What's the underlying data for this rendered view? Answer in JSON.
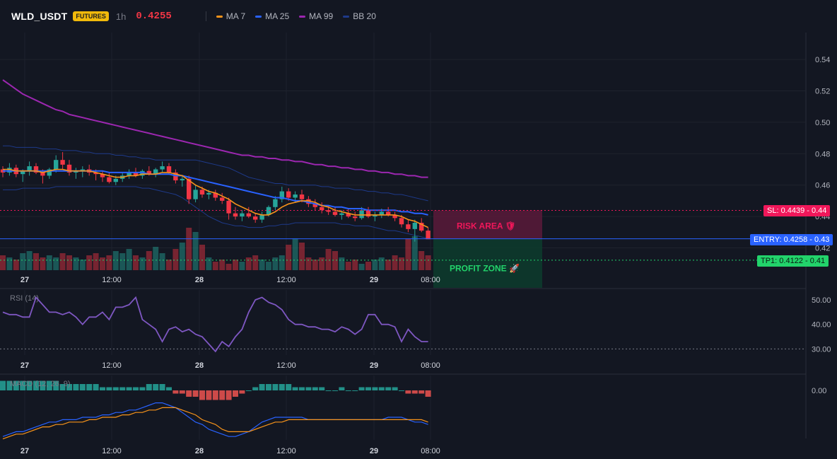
{
  "header": {
    "symbol": "WLD_USDT",
    "badge": "FUTURES",
    "timeframe": "1h",
    "last_price": "0.4255",
    "legend": [
      {
        "label": "MA 7",
        "color": "#f7931a"
      },
      {
        "label": "MA 25",
        "color": "#2962ff"
      },
      {
        "label": "MA 99",
        "color": "#9c27b0"
      },
      {
        "label": "BB 20",
        "color": "#1e3a8a"
      }
    ]
  },
  "colors": {
    "background": "#131722",
    "up": "#26a69a",
    "down": "#f23645",
    "grid": "#1e222d",
    "risk_zone": "#5a1a3a",
    "profit_zone": "#0d3a2c"
  },
  "chart_data": [
    {
      "type": "candlestick",
      "title": "WLD_USDT",
      "y_ticks": [
        "0.54",
        "0.52",
        "0.50",
        "0.48",
        "0.46",
        "0.44",
        "0.42"
      ],
      "x_ticks": [
        "27",
        "12:00",
        "28",
        "12:00",
        "29",
        "08:00"
      ],
      "candles": [
        [
          0.47,
          0.472,
          0.465,
          0.468
        ],
        [
          0.468,
          0.474,
          0.466,
          0.471
        ],
        [
          0.471,
          0.473,
          0.465,
          0.467
        ],
        [
          0.467,
          0.47,
          0.462,
          0.469
        ],
        [
          0.469,
          0.475,
          0.466,
          0.472
        ],
        [
          0.472,
          0.474,
          0.467,
          0.468
        ],
        [
          0.468,
          0.47,
          0.461,
          0.466
        ],
        [
          0.466,
          0.471,
          0.464,
          0.47
        ],
        [
          0.47,
          0.479,
          0.468,
          0.476
        ],
        [
          0.476,
          0.481,
          0.47,
          0.473
        ],
        [
          0.473,
          0.476,
          0.466,
          0.468
        ],
        [
          0.468,
          0.471,
          0.464,
          0.469
        ],
        [
          0.469,
          0.472,
          0.465,
          0.47
        ],
        [
          0.47,
          0.473,
          0.466,
          0.468
        ],
        [
          0.468,
          0.47,
          0.463,
          0.467
        ],
        [
          0.467,
          0.469,
          0.462,
          0.465
        ],
        [
          0.465,
          0.468,
          0.461,
          0.462
        ],
        [
          0.462,
          0.466,
          0.46,
          0.464
        ],
        [
          0.464,
          0.468,
          0.462,
          0.466
        ],
        [
          0.466,
          0.47,
          0.464,
          0.468
        ],
        [
          0.468,
          0.471,
          0.465,
          0.466
        ],
        [
          0.466,
          0.47,
          0.464,
          0.469
        ],
        [
          0.469,
          0.472,
          0.466,
          0.467
        ],
        [
          0.467,
          0.471,
          0.465,
          0.47
        ],
        [
          0.47,
          0.475,
          0.468,
          0.472
        ],
        [
          0.472,
          0.474,
          0.467,
          0.468
        ],
        [
          0.468,
          0.47,
          0.461,
          0.463
        ],
        [
          0.463,
          0.466,
          0.459,
          0.464
        ],
        [
          0.464,
          0.466,
          0.448,
          0.451
        ],
        [
          0.451,
          0.46,
          0.449,
          0.457
        ],
        [
          0.457,
          0.459,
          0.452,
          0.454
        ],
        [
          0.454,
          0.457,
          0.451,
          0.455
        ],
        [
          0.455,
          0.457,
          0.45,
          0.452
        ],
        [
          0.452,
          0.455,
          0.448,
          0.45
        ],
        [
          0.45,
          0.452,
          0.438,
          0.442
        ],
        [
          0.442,
          0.446,
          0.438,
          0.44
        ],
        [
          0.44,
          0.444,
          0.437,
          0.442
        ],
        [
          0.442,
          0.446,
          0.439,
          0.44
        ],
        [
          0.44,
          0.442,
          0.436,
          0.438
        ],
        [
          0.438,
          0.443,
          0.436,
          0.441
        ],
        [
          0.441,
          0.447,
          0.44,
          0.446
        ],
        [
          0.446,
          0.453,
          0.444,
          0.451
        ],
        [
          0.451,
          0.459,
          0.449,
          0.456
        ],
        [
          0.456,
          0.458,
          0.45,
          0.452
        ],
        [
          0.452,
          0.456,
          0.449,
          0.454
        ],
        [
          0.454,
          0.457,
          0.449,
          0.451
        ],
        [
          0.451,
          0.453,
          0.446,
          0.448
        ],
        [
          0.448,
          0.451,
          0.444,
          0.446
        ],
        [
          0.446,
          0.449,
          0.442,
          0.444
        ],
        [
          0.444,
          0.447,
          0.441,
          0.443
        ],
        [
          0.443,
          0.446,
          0.44,
          0.441
        ],
        [
          0.441,
          0.444,
          0.438,
          0.442
        ],
        [
          0.442,
          0.445,
          0.439,
          0.44
        ],
        [
          0.44,
          0.443,
          0.437,
          0.439
        ],
        [
          0.439,
          0.446,
          0.438,
          0.444
        ],
        [
          0.444,
          0.446,
          0.439,
          0.44
        ],
        [
          0.44,
          0.443,
          0.437,
          0.441
        ],
        [
          0.441,
          0.445,
          0.439,
          0.443
        ],
        [
          0.443,
          0.446,
          0.44,
          0.441
        ],
        [
          0.441,
          0.443,
          0.437,
          0.439
        ],
        [
          0.439,
          0.441,
          0.433,
          0.435
        ],
        [
          0.435,
          0.438,
          0.43,
          0.432
        ],
        [
          0.432,
          0.438,
          0.424,
          0.436
        ],
        [
          0.436,
          0.439,
          0.43,
          0.431
        ],
        [
          0.431,
          0.433,
          0.426,
          0.4255
        ]
      ],
      "volumes": [
        7,
        6,
        5,
        8,
        9,
        8,
        6,
        7,
        6,
        8,
        7,
        6,
        5,
        7,
        8,
        6,
        7,
        9,
        8,
        10,
        7,
        6,
        9,
        11,
        8,
        5,
        10,
        13,
        20,
        18,
        12,
        6,
        4,
        5,
        3,
        5,
        4,
        6,
        7,
        5,
        4,
        6,
        7,
        12,
        15,
        13,
        6,
        5,
        6,
        10,
        9,
        6,
        4,
        5,
        3,
        4,
        5,
        6,
        5,
        7,
        6,
        15,
        16,
        9,
        7
      ],
      "ma7": [
        0.47,
        0.47,
        0.469,
        0.469,
        0.469,
        0.469,
        0.468,
        0.469,
        0.47,
        0.47,
        0.469,
        0.469,
        0.469,
        0.469,
        0.468,
        0.467,
        0.466,
        0.465,
        0.465,
        0.466,
        0.466,
        0.467,
        0.467,
        0.467,
        0.468,
        0.468,
        0.467,
        0.466,
        0.463,
        0.46,
        0.458,
        0.456,
        0.455,
        0.453,
        0.451,
        0.448,
        0.446,
        0.444,
        0.442,
        0.441,
        0.441,
        0.443,
        0.446,
        0.448,
        0.449,
        0.45,
        0.45,
        0.449,
        0.447,
        0.446,
        0.444,
        0.443,
        0.442,
        0.441,
        0.441,
        0.441,
        0.441,
        0.441,
        0.441,
        0.441,
        0.44,
        0.438,
        0.437,
        0.435,
        0.433
      ],
      "ma25": [
        0.469,
        0.469,
        0.469,
        0.469,
        0.469,
        0.469,
        0.469,
        0.469,
        0.469,
        0.469,
        0.469,
        0.469,
        0.469,
        0.469,
        0.469,
        0.469,
        0.468,
        0.468,
        0.468,
        0.468,
        0.468,
        0.468,
        0.467,
        0.467,
        0.467,
        0.467,
        0.466,
        0.466,
        0.465,
        0.464,
        0.463,
        0.462,
        0.461,
        0.46,
        0.459,
        0.458,
        0.457,
        0.456,
        0.455,
        0.454,
        0.453,
        0.452,
        0.452,
        0.451,
        0.45,
        0.45,
        0.449,
        0.448,
        0.447,
        0.447,
        0.446,
        0.446,
        0.445,
        0.445,
        0.445,
        0.444,
        0.444,
        0.444,
        0.444,
        0.444,
        0.443,
        0.443,
        0.442,
        0.442,
        0.441
      ],
      "ma99": [
        0.527,
        0.524,
        0.521,
        0.518,
        0.516,
        0.514,
        0.512,
        0.51,
        0.508,
        0.507,
        0.505,
        0.504,
        0.503,
        0.502,
        0.501,
        0.5,
        0.499,
        0.498,
        0.497,
        0.496,
        0.495,
        0.494,
        0.493,
        0.492,
        0.491,
        0.49,
        0.489,
        0.488,
        0.487,
        0.486,
        0.485,
        0.484,
        0.483,
        0.482,
        0.481,
        0.48,
        0.479,
        0.479,
        0.478,
        0.478,
        0.477,
        0.477,
        0.476,
        0.476,
        0.475,
        0.475,
        0.474,
        0.473,
        0.473,
        0.472,
        0.472,
        0.471,
        0.471,
        0.47,
        0.47,
        0.469,
        0.469,
        0.468,
        0.468,
        0.467,
        0.467,
        0.466,
        0.466,
        0.465,
        0.465
      ],
      "bb_upper": [
        0.485,
        0.485,
        0.484,
        0.484,
        0.484,
        0.484,
        0.483,
        0.483,
        0.483,
        0.482,
        0.482,
        0.482,
        0.481,
        0.481,
        0.48,
        0.48,
        0.48,
        0.479,
        0.479,
        0.478,
        0.478,
        0.477,
        0.477,
        0.476,
        0.476,
        0.476,
        0.476,
        0.476,
        0.476,
        0.476,
        0.475,
        0.474,
        0.473,
        0.472,
        0.471,
        0.469,
        0.467,
        0.465,
        0.464,
        0.463,
        0.462,
        0.461,
        0.461,
        0.46,
        0.46,
        0.46,
        0.46,
        0.46,
        0.459,
        0.459,
        0.458,
        0.458,
        0.458,
        0.457,
        0.457,
        0.456,
        0.456,
        0.455,
        0.455,
        0.454,
        0.454,
        0.453,
        0.452,
        0.451,
        0.45
      ],
      "bb_lower": [
        0.457,
        0.457,
        0.457,
        0.458,
        0.458,
        0.458,
        0.458,
        0.458,
        0.459,
        0.459,
        0.459,
        0.459,
        0.459,
        0.459,
        0.459,
        0.459,
        0.459,
        0.459,
        0.459,
        0.459,
        0.459,
        0.458,
        0.458,
        0.457,
        0.456,
        0.455,
        0.454,
        0.452,
        0.449,
        0.446,
        0.443,
        0.44,
        0.438,
        0.436,
        0.435,
        0.434,
        0.434,
        0.433,
        0.433,
        0.433,
        0.434,
        0.434,
        0.435,
        0.435,
        0.436,
        0.436,
        0.436,
        0.436,
        0.436,
        0.436,
        0.436,
        0.435,
        0.435,
        0.434,
        0.434,
        0.434,
        0.433,
        0.432,
        0.431,
        0.431,
        0.43,
        0.429,
        0.428,
        0.427,
        0.426
      ]
    },
    {
      "type": "line",
      "title": "RSI (14)",
      "y_ticks": [
        "50.00",
        "40.00",
        "30.00"
      ],
      "x_ticks": [
        "27",
        "12:00",
        "28",
        "12:00",
        "29",
        "08:00"
      ],
      "values": [
        45,
        44,
        44,
        43,
        43,
        51,
        48,
        45,
        45,
        44,
        45,
        43,
        40,
        43,
        43,
        45,
        42,
        47,
        47,
        48,
        51,
        42,
        40,
        38,
        33,
        38,
        39,
        37,
        38,
        36,
        35,
        32,
        29,
        33,
        31,
        35,
        38,
        45,
        50,
        51,
        49,
        48,
        46,
        42,
        40,
        40,
        39,
        39,
        38,
        38,
        37,
        39,
        38,
        36,
        38,
        44,
        44,
        40,
        40,
        39,
        33,
        38,
        35,
        33,
        33
      ]
    },
    {
      "type": "bar",
      "title": "MACD (12, 26, 9)",
      "y_ticks": [
        "0.00"
      ],
      "x_ticks": [
        "27",
        "12:00",
        "28",
        "12:00",
        "29",
        "08:00"
      ],
      "histogram": [
        3,
        3,
        3,
        3,
        3,
        3,
        3,
        3,
        3,
        2,
        2,
        2,
        2,
        2,
        2,
        1,
        1,
        1,
        1,
        1,
        1,
        1,
        2,
        2,
        2,
        1,
        -1,
        -1,
        -2,
        -2,
        -3,
        -3,
        -3,
        -3,
        -3,
        -2,
        -1,
        0,
        1,
        2,
        2,
        2,
        2,
        2,
        1,
        1,
        1,
        1,
        1,
        0,
        0,
        1,
        0,
        0,
        1,
        1,
        1,
        1,
        1,
        1,
        0,
        -1,
        -1,
        -1,
        -2
      ],
      "macd": [
        -8,
        -7,
        -6,
        -6,
        -5,
        -4,
        -3,
        -2,
        -2,
        -1,
        -1,
        -1,
        0,
        0,
        0,
        1,
        1,
        2,
        2,
        3,
        3,
        4,
        5,
        6,
        6,
        5,
        4,
        2,
        0,
        -2,
        -3,
        -5,
        -6,
        -7,
        -8,
        -8,
        -7,
        -6,
        -4,
        -2,
        -1,
        0,
        0,
        0,
        0,
        0,
        -1,
        -1,
        -1,
        -1,
        -1,
        -1,
        -1,
        -1,
        -1,
        -1,
        -1,
        -1,
        0,
        0,
        0,
        -1,
        -2,
        -2,
        -3
      ],
      "signal": [
        -9,
        -8,
        -7,
        -7,
        -6,
        -5,
        -4,
        -4,
        -3,
        -3,
        -2,
        -2,
        -2,
        -1,
        -1,
        0,
        0,
        0,
        1,
        1,
        2,
        2,
        3,
        3,
        4,
        4,
        4,
        3,
        2,
        1,
        -1,
        -2,
        -3,
        -5,
        -6,
        -6,
        -6,
        -6,
        -5,
        -4,
        -3,
        -2,
        -2,
        -1,
        -1,
        -1,
        -1,
        -1,
        -1,
        -1,
        -1,
        -1,
        -1,
        -1,
        -1,
        -1,
        -1,
        -1,
        -1,
        -1,
        -1,
        -1,
        -1,
        -1,
        -2
      ]
    }
  ],
  "levels": {
    "sl_label": "SL: 0.4439",
    "sl_axis": "0.44",
    "entry_label": "ENTRY: 0.4258",
    "entry_axis": "0.43",
    "tp_label": "TP1: 0.4122",
    "tp_axis": "0.41",
    "risk_label": "RISK AREA 🛡",
    "profit_label": "PROFIT ZONE 🚀"
  },
  "time_axis_last": "08:00"
}
